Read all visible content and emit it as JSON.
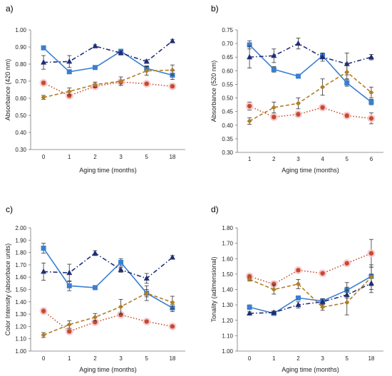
{
  "chart_data": [
    {
      "panel": "a)",
      "type": "line",
      "ylabel": "Absorbance (420 nm)",
      "xlabel": "Aging time (months)",
      "categories": [
        "0",
        "1",
        "2",
        "3",
        "5",
        "18"
      ],
      "ylim": [
        0.3,
        1.0
      ],
      "yticks": [
        "0.30",
        "0.40",
        "0.50",
        "0.60",
        "0.70",
        "0.80",
        "0.90",
        "1.00"
      ],
      "series": [
        {
          "style": "blue-square-solid",
          "color": "#3a7fd0",
          "values": [
            0.895,
            0.755,
            0.78,
            0.875,
            0.775,
            0.735
          ],
          "errors": [
            0.012,
            0.01,
            0.008,
            0.012,
            0.015,
            0.025
          ]
        },
        {
          "style": "navy-triangle-dashdot",
          "color": "#1f2d78",
          "values": [
            0.81,
            0.815,
            0.905,
            0.865,
            0.815,
            0.935
          ],
          "errors": [
            0.04,
            0.035,
            0.008,
            0.012,
            0.01,
            0.008
          ]
        },
        {
          "style": "red-circle-dotted",
          "color": "#c94a2a",
          "values": [
            0.69,
            0.615,
            0.67,
            0.695,
            0.685,
            0.67
          ],
          "errors": [
            0.012,
            0.01,
            0.01,
            0.012,
            0.008,
            0.01
          ]
        },
        {
          "style": "gold-diamond-dashed",
          "color": "#b07d28",
          "values": [
            0.605,
            0.64,
            0.68,
            0.7,
            0.76,
            0.765
          ],
          "errors": [
            0.012,
            0.02,
            0.015,
            0.025,
            0.025,
            0.03
          ]
        }
      ]
    },
    {
      "panel": "b)",
      "type": "line",
      "ylabel": "Absorbance (520 nm)",
      "xlabel": "Aging time (months)",
      "categories": [
        "1",
        "2",
        "3",
        "4",
        "5",
        "6"
      ],
      "ylim": [
        0.3,
        0.75
      ],
      "yticks": [
        "0.30",
        "0.35",
        "0.40",
        "0.45",
        "0.50",
        "0.55",
        "0.60",
        "0.65",
        "0.70",
        "0.75"
      ],
      "series": [
        {
          "style": "blue-square-solid",
          "color": "#3a7fd0",
          "values": [
            0.695,
            0.605,
            0.58,
            0.655,
            0.555,
            0.485
          ],
          "errors": [
            0.015,
            0.01,
            0.005,
            0.01,
            0.012,
            0.01
          ]
        },
        {
          "style": "navy-triangle-dashdot",
          "color": "#1f2d78",
          "values": [
            0.65,
            0.655,
            0.7,
            0.65,
            0.625,
            0.65
          ],
          "errors": [
            0.04,
            0.025,
            0.02,
            0.015,
            0.04,
            0.01
          ]
        },
        {
          "style": "red-circle-dotted",
          "color": "#c94a2a",
          "values": [
            0.47,
            0.43,
            0.44,
            0.465,
            0.435,
            0.425
          ],
          "errors": [
            0.015,
            0.008,
            0.008,
            0.008,
            0.008,
            0.02
          ]
        },
        {
          "style": "gold-diamond-dashed",
          "color": "#b07d28",
          "values": [
            0.415,
            0.465,
            0.48,
            0.54,
            0.595,
            0.52
          ],
          "errors": [
            0.012,
            0.02,
            0.02,
            0.03,
            0.025,
            0.02
          ]
        }
      ]
    },
    {
      "panel": "c)",
      "type": "line",
      "ylabel": "Color Intensity (absorbace units)",
      "xlabel": "Aging time (months)",
      "categories": [
        "0",
        "1",
        "2",
        "3",
        "5",
        "18"
      ],
      "ylim": [
        1.0,
        2.0
      ],
      "yticks": [
        "1.00",
        "1.10",
        "1.20",
        "1.30",
        "1.40",
        "1.50",
        "1.60",
        "1.70",
        "1.80",
        "1.90",
        "2.00"
      ],
      "series": [
        {
          "style": "blue-square-solid",
          "color": "#3a7fd0",
          "values": [
            1.835,
            1.53,
            1.515,
            1.72,
            1.47,
            1.35
          ],
          "errors": [
            0.04,
            0.04,
            0.01,
            0.03,
            0.03,
            0.03
          ]
        },
        {
          "style": "navy-triangle-dashdot",
          "color": "#1f2d78",
          "values": [
            1.645,
            1.635,
            1.795,
            1.66,
            1.59,
            1.76
          ],
          "errors": [
            0.07,
            0.07,
            0.02,
            0.02,
            0.04,
            0.015
          ]
        },
        {
          "style": "red-circle-dotted",
          "color": "#c94a2a",
          "values": [
            1.325,
            1.16,
            1.235,
            1.295,
            1.24,
            1.2
          ],
          "errors": [
            0.02,
            0.015,
            0.01,
            0.015,
            0.01,
            0.01
          ]
        },
        {
          "style": "gold-diamond-dashed",
          "color": "#b07d28",
          "values": [
            1.13,
            1.215,
            1.275,
            1.36,
            1.47,
            1.395
          ],
          "errors": [
            0.02,
            0.03,
            0.03,
            0.06,
            0.06,
            0.05
          ]
        }
      ]
    },
    {
      "panel": "d)",
      "type": "line",
      "ylabel": "Tonality (adimensional)",
      "xlabel": "Aging time (months)",
      "categories": [
        "0",
        "1",
        "2",
        "3",
        "5",
        "18"
      ],
      "ylim": [
        1.0,
        1.8
      ],
      "yticks": [
        "1.00",
        "1.10",
        "1.20",
        "1.30",
        "1.40",
        "1.50",
        "1.60",
        "1.70",
        "1.80"
      ],
      "series": [
        {
          "style": "blue-square-solid",
          "color": "#3a7fd0",
          "values": [
            1.285,
            1.245,
            1.345,
            1.325,
            1.395,
            1.485
          ],
          "errors": [
            0.015,
            0.01,
            0.01,
            0.01,
            0.05,
            0.06
          ]
        },
        {
          "style": "navy-triangle-dashdot",
          "color": "#1f2d78",
          "values": [
            1.245,
            1.25,
            1.3,
            1.32,
            1.365,
            1.44
          ],
          "errors": [
            0.01,
            0.01,
            0.02,
            0.02,
            0.05,
            0.06
          ]
        },
        {
          "style": "red-circle-dotted",
          "color": "#c94a2a",
          "values": [
            1.485,
            1.435,
            1.525,
            1.505,
            1.57,
            1.635
          ],
          "errors": [
            0.01,
            0.015,
            0.01,
            0.01,
            0.01,
            0.09
          ]
        },
        {
          "style": "gold-diamond-dashed",
          "color": "#b07d28",
          "values": [
            1.465,
            1.4,
            1.435,
            1.285,
            1.315,
            1.48
          ],
          "errors": [
            0.01,
            0.03,
            0.03,
            0.02,
            0.08,
            0.08
          ]
        }
      ]
    }
  ]
}
